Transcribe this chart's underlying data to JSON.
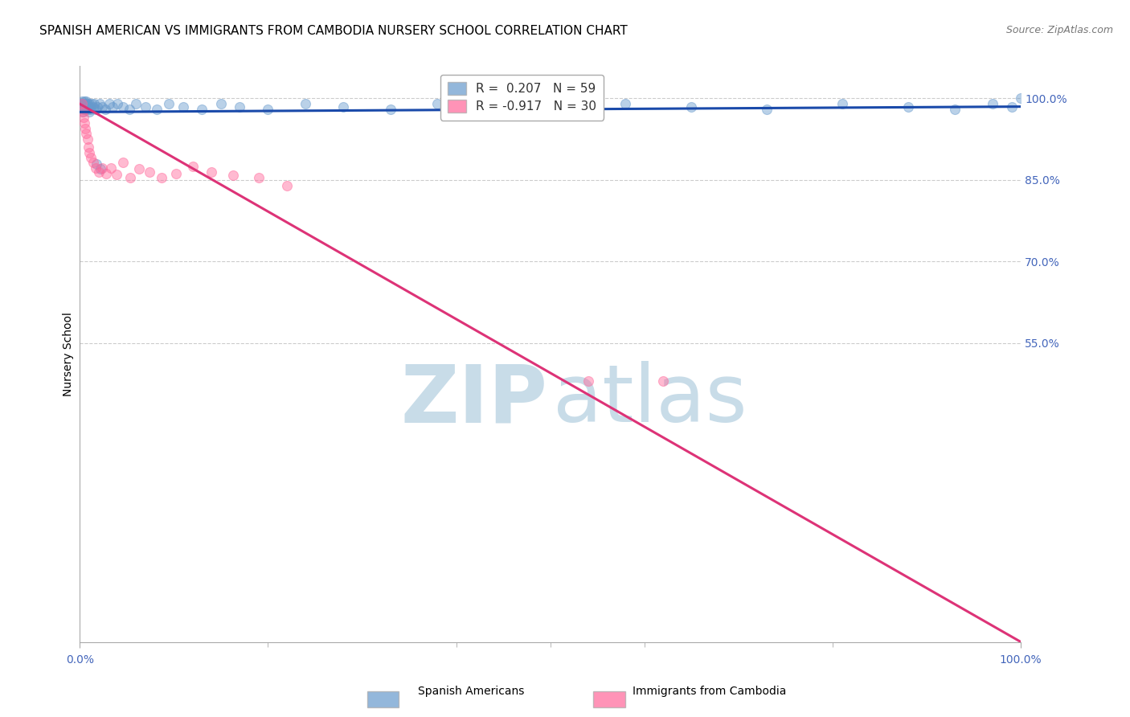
{
  "title": "SPANISH AMERICAN VS IMMIGRANTS FROM CAMBODIA NURSERY SCHOOL CORRELATION CHART",
  "source": "Source: ZipAtlas.com",
  "ylabel": "Nursery School",
  "ytick_labels": [
    "100.0%",
    "85.0%",
    "70.0%",
    "55.0%"
  ],
  "ytick_values": [
    1.0,
    0.85,
    0.7,
    0.55
  ],
  "xlim": [
    0.0,
    1.0
  ],
  "ylim": [
    0.0,
    1.06
  ],
  "legend_1_label": "R =  0.207   N = 59",
  "legend_2_label": "R = -0.917   N = 30",
  "legend_1_color": "#6699CC",
  "legend_2_color": "#FF6699",
  "trendline_1_color": "#1a4aaa",
  "trendline_2_color": "#dd3377",
  "watermark_zip_color": "#c8dce8",
  "watermark_atlas_color": "#c8dce8",
  "blue_x": [
    0.001,
    0.002,
    0.002,
    0.003,
    0.003,
    0.004,
    0.004,
    0.005,
    0.005,
    0.006,
    0.006,
    0.007,
    0.007,
    0.008,
    0.008,
    0.009,
    0.01,
    0.01,
    0.011,
    0.012,
    0.013,
    0.014,
    0.015,
    0.017,
    0.019,
    0.021,
    0.024,
    0.027,
    0.031,
    0.035,
    0.04,
    0.046,
    0.053,
    0.06,
    0.07,
    0.082,
    0.095,
    0.11,
    0.13,
    0.15,
    0.018,
    0.022,
    0.17,
    0.2,
    0.24,
    0.28,
    0.33,
    0.38,
    0.44,
    0.51,
    0.58,
    0.65,
    0.73,
    0.81,
    0.88,
    0.93,
    0.97,
    0.99,
    1.0
  ],
  "blue_y": [
    0.99,
    0.995,
    0.985,
    0.99,
    0.975,
    0.99,
    0.98,
    0.995,
    0.985,
    0.99,
    0.98,
    0.995,
    0.985,
    0.99,
    0.98,
    0.985,
    0.99,
    0.975,
    0.985,
    0.98,
    0.99,
    0.985,
    0.99,
    0.98,
    0.985,
    0.99,
    0.985,
    0.98,
    0.99,
    0.985,
    0.99,
    0.985,
    0.98,
    0.99,
    0.985,
    0.98,
    0.99,
    0.985,
    0.98,
    0.99,
    0.88,
    0.87,
    0.985,
    0.98,
    0.99,
    0.985,
    0.98,
    0.99,
    0.985,
    0.98,
    0.99,
    0.985,
    0.98,
    0.99,
    0.985,
    0.98,
    0.99,
    0.985,
    1.0
  ],
  "pink_x": [
    0.002,
    0.003,
    0.004,
    0.005,
    0.006,
    0.007,
    0.008,
    0.009,
    0.01,
    0.012,
    0.014,
    0.017,
    0.02,
    0.024,
    0.028,
    0.033,
    0.039,
    0.046,
    0.054,
    0.063,
    0.074,
    0.087,
    0.102,
    0.12,
    0.14,
    0.163,
    0.19,
    0.22,
    0.54,
    0.62
  ],
  "pink_y": [
    0.99,
    0.975,
    0.965,
    0.955,
    0.945,
    0.935,
    0.925,
    0.91,
    0.9,
    0.892,
    0.882,
    0.872,
    0.865,
    0.872,
    0.862,
    0.872,
    0.86,
    0.882,
    0.855,
    0.87,
    0.865,
    0.855,
    0.862,
    0.875,
    0.865,
    0.858,
    0.855,
    0.84,
    0.48,
    0.48
  ],
  "blue_trend_x0": 0.0,
  "blue_trend_y0": 0.975,
  "blue_trend_x1": 1.0,
  "blue_trend_y1": 0.985,
  "pink_trend_x0": 0.0,
  "pink_trend_y0": 0.99,
  "pink_trend_x1": 1.0,
  "pink_trend_y1": 0.0,
  "marker_size": 75,
  "marker_alpha": 0.45,
  "background_color": "#ffffff",
  "grid_color": "#cccccc",
  "title_fontsize": 11,
  "tick_fontsize": 10,
  "ylabel_fontsize": 10,
  "source_fontsize": 9
}
